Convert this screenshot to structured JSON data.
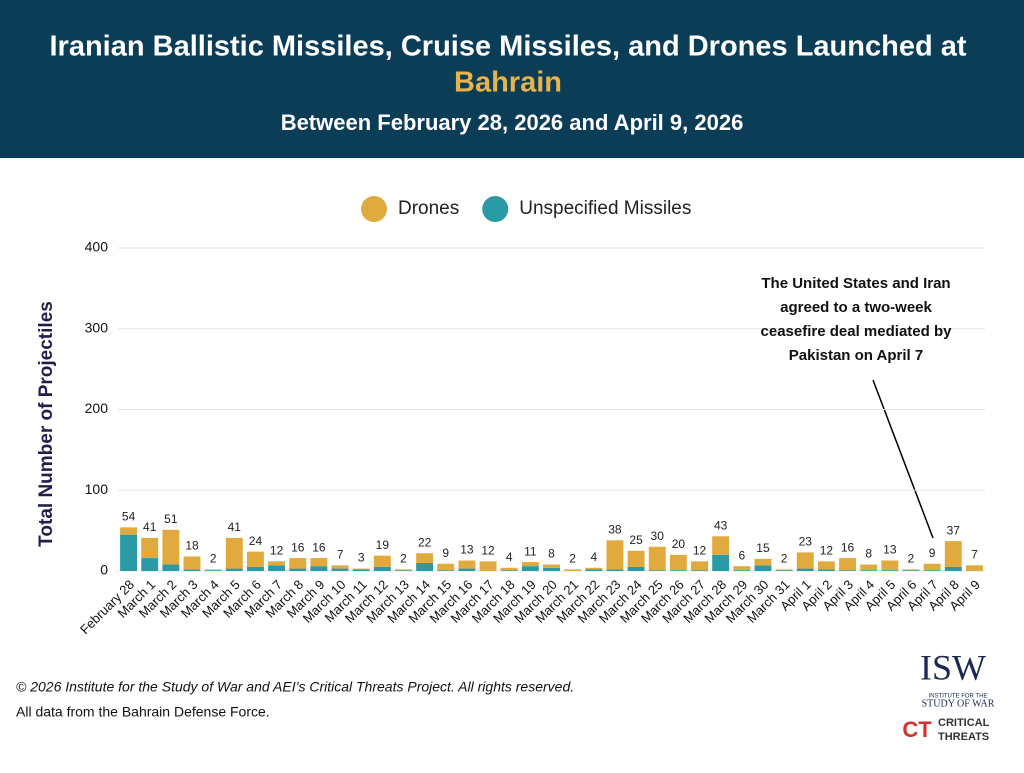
{
  "chart_data": {
    "type": "stacked_bar",
    "title": "Iranian Ballistic Missiles, Cruise Missiles, and Drones Launched at",
    "title_highlight": "Bahrain",
    "subtitle": "Between February 28, 2026 and April 9, 2026",
    "y_label": "Total Number of Projectiles",
    "categories": [
      "February 28",
      "March 1",
      "March 2",
      "March 3",
      "March 4",
      "March 5",
      "March 6",
      "March 7",
      "March 8",
      "March 9",
      "March 10",
      "March 11",
      "March 12",
      "March 13",
      "March 14",
      "March 15",
      "March 16",
      "March 17",
      "March 18",
      "March 19",
      "March 20",
      "March 21",
      "March 22",
      "March 23",
      "March 24",
      "March 25",
      "March 26",
      "March 27",
      "March 28",
      "March 29",
      "March 30",
      "March 31",
      "April 1",
      "April 2",
      "April 3",
      "April 4",
      "April 5",
      "April 6",
      "April 7",
      "April 8",
      "April 9"
    ],
    "series": [
      {
        "name": "Drones",
        "color": "#e0aa3e",
        "values": [
          9,
          25,
          43,
          16,
          1,
          38,
          19,
          5,
          13,
          10,
          4,
          1,
          14,
          1,
          12,
          8,
          10,
          12,
          3,
          5,
          4,
          2,
          2,
          36,
          20,
          29,
          19,
          11,
          23,
          5,
          8,
          1,
          20,
          10,
          15,
          7,
          12,
          1,
          8,
          32,
          7
        ]
      },
      {
        "name": "Unspecified Missiles",
        "color": "#2a9aa5",
        "values": [
          45,
          16,
          8,
          2,
          1,
          3,
          5,
          7,
          3,
          6,
          3,
          2,
          5,
          1,
          10,
          1,
          3,
          0,
          1,
          6,
          4,
          0,
          2,
          2,
          5,
          1,
          1,
          1,
          20,
          1,
          7,
          1,
          3,
          2,
          1,
          1,
          1,
          1,
          1,
          5,
          0
        ]
      }
    ],
    "totals": [
      54,
      41,
      51,
      18,
      2,
      41,
      24,
      12,
      16,
      16,
      7,
      3,
      19,
      2,
      22,
      9,
      13,
      12,
      4,
      11,
      8,
      2,
      4,
      38,
      25,
      30,
      20,
      12,
      43,
      6,
      15,
      2,
      23,
      12,
      16,
      8,
      13,
      2,
      9,
      37,
      7
    ],
    "ylim": [
      0,
      400
    ],
    "yticks": [
      0,
      100,
      200,
      300,
      400
    ],
    "grid": true,
    "annotation": [
      "The United States and Iran",
      "agreed to a two-week",
      "ceasefire deal mediated by",
      "Pakistan on April 7"
    ],
    "footer": [
      "© 2026 Institute for the Study of War and AEI’s Critical Threats Project. All rights reserved.",
      "All data from the Bahrain Defense Force."
    ],
    "logos": {
      "isw": "ISW",
      "isw_sub": [
        "INSTITUTE FOR THE",
        "STUDY OF WAR"
      ],
      "ct": "CT",
      "ct_sub": [
        "CRITICAL",
        "THREATS"
      ]
    }
  }
}
